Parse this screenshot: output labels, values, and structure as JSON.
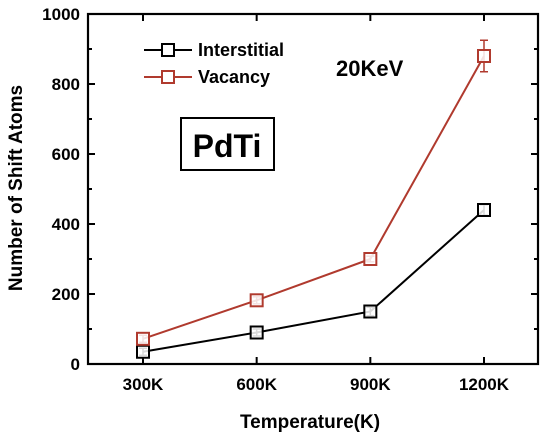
{
  "chart_data": {
    "type": "line",
    "xlabel": "Temperature(K)",
    "ylabel": "Number of Shift Atoms",
    "categories": [
      "300K",
      "600K",
      "900K",
      "1200K"
    ],
    "ylim": [
      0,
      1000
    ],
    "yticks": [
      0,
      200,
      400,
      600,
      800,
      1000
    ],
    "yticklabels": [
      "0",
      "200",
      "400",
      "600",
      "800",
      "1000"
    ],
    "grid": false,
    "legend_position": "top-left",
    "series": [
      {
        "name": "Interstitial",
        "color": "#000000",
        "marker": "open-square",
        "values": [
          35,
          90,
          150,
          440
        ],
        "errors": [
          10,
          10,
          12,
          15
        ]
      },
      {
        "name": "Vacancy",
        "color": "#b03a2e",
        "marker": "open-square",
        "values": [
          72,
          182,
          300,
          880
        ],
        "errors": [
          10,
          10,
          8,
          45
        ]
      }
    ],
    "annotations": {
      "energy": "20KeV",
      "material": "PdTi"
    }
  }
}
